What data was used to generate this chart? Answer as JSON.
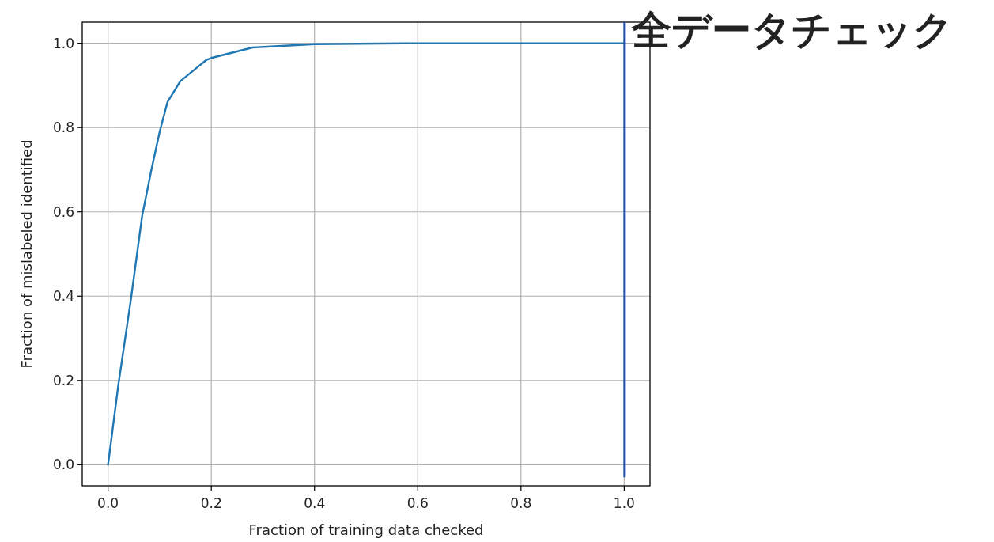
{
  "chart_data": {
    "type": "line",
    "xlabel": "Fraction of training data checked",
    "ylabel": "Fraction of mislabeled identified",
    "x": [
      0,
      0.02,
      0.044,
      0.066,
      0.084,
      0.1,
      0.115,
      0.14,
      0.19,
      0.2,
      0.28,
      0.4,
      0.6,
      0.8,
      1.0
    ],
    "series": [
      {
        "color": "#1f77b4",
        "values": [
          0,
          0.19,
          0.39,
          0.59,
          0.7,
          0.79,
          0.86,
          0.91,
          0.96,
          0.965,
          0.99,
          0.998,
          1.0,
          1.0,
          1.0
        ]
      }
    ],
    "xlim": [
      -0.05,
      1.05
    ],
    "ylim": [
      -0.05,
      1.05
    ],
    "xticks": [
      {
        "value": 0,
        "label": "0.0"
      },
      0.2,
      0.4,
      0.6,
      0.8,
      {
        "value": 1,
        "label": "1.0"
      }
    ],
    "yticks": [
      {
        "value": 0,
        "label": "0.0"
      },
      0.2,
      0.4,
      0.6,
      0.8,
      {
        "value": 1,
        "label": "1.0"
      }
    ],
    "grid": true,
    "marker": "none",
    "line_style": "solid",
    "ref_lines": [
      {
        "axis": "x",
        "value": 1.0,
        "label": "全データチェック",
        "color": "#1f4fa8"
      }
    ]
  }
}
